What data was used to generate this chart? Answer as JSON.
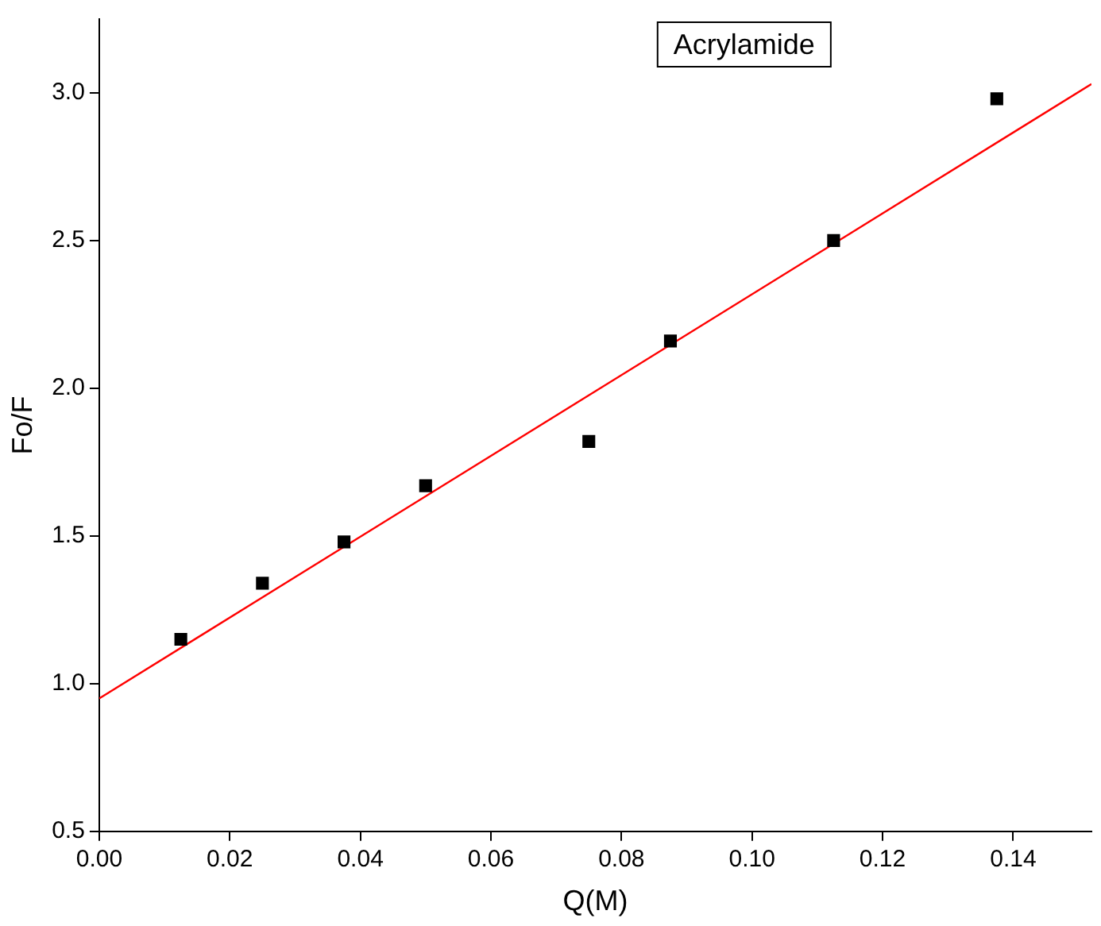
{
  "chart_data": {
    "type": "scatter",
    "title": "Acrylamide",
    "xlabel": "Q(M)",
    "ylabel": "Fo/F",
    "xlim": [
      0,
      0.152
    ],
    "xticks": [
      {
        "value": 0,
        "label": "0.00"
      },
      {
        "value": 0.02,
        "label": "0.02"
      },
      {
        "value": 0.04,
        "label": "0.04"
      },
      {
        "value": 0.06,
        "label": "0.06"
      },
      {
        "value": 0.08,
        "label": "0.08"
      },
      {
        "value": 0.1,
        "label": "0.10"
      },
      {
        "value": 0.12,
        "label": "0.12"
      },
      {
        "value": 0.14,
        "label": "0.14"
      }
    ],
    "ylim": [
      0.5,
      3.25
    ],
    "yticks": [
      {
        "value": 0.5,
        "label": "0.5"
      },
      {
        "value": 1,
        "label": "1.0"
      },
      {
        "value": 1.5,
        "label": "1.5"
      },
      {
        "value": 2,
        "label": "2.0"
      },
      {
        "value": 2.5,
        "label": "2.5"
      },
      {
        "value": 3,
        "label": "3.0"
      }
    ],
    "grid": false,
    "legend": false,
    "series": [
      {
        "type": "scatter",
        "color": "#000000",
        "marker": "square",
        "x": [
          0.0125,
          0.025,
          0.0375,
          0.05,
          0.075,
          0.0875,
          0.1125,
          0.1375
        ],
        "values": [
          1.15,
          1.34,
          1.48,
          1.67,
          1.82,
          2.16,
          2.5,
          2.98
        ]
      },
      {
        "type": "line",
        "color": "#ff0000",
        "marker": "none",
        "line_style": "solid",
        "x": [
          0,
          0.152
        ],
        "values": [
          0.95,
          3.03
        ]
      }
    ]
  }
}
